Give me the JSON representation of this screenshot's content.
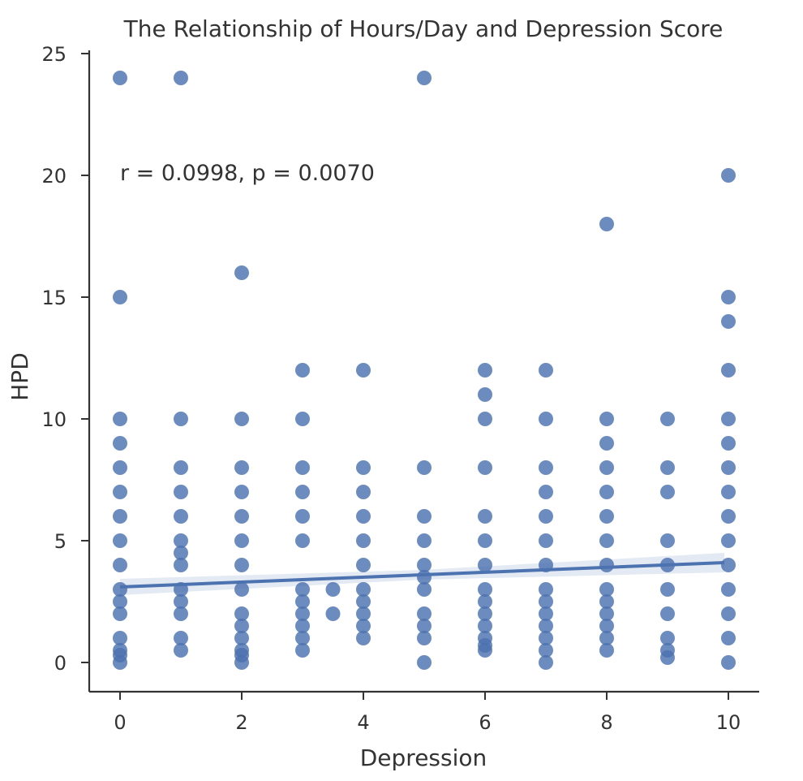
{
  "chart_data": {
    "type": "scatter",
    "title": "The Relationship of Hours/Day and Depression Score",
    "xlabel": "Depression",
    "ylabel": "HPD",
    "xlim": [
      -0.5,
      10.5
    ],
    "ylim": [
      -1.2,
      25.2
    ],
    "xticks": [
      0,
      2,
      4,
      6,
      8,
      10
    ],
    "yticks": [
      0,
      5,
      10,
      15,
      20,
      25
    ],
    "grid": false,
    "annotation": {
      "text": "r = 0.0998, p = 0.0070",
      "x": 0,
      "y": 20
    },
    "colors": {
      "points": "#4c72b0",
      "line": "#4c72b0",
      "band": "#4c72b0"
    },
    "regression": {
      "x": [
        0,
        10
      ],
      "y": [
        3.1,
        4.1
      ]
    },
    "points": [
      [
        0,
        24
      ],
      [
        0,
        15
      ],
      [
        0,
        10
      ],
      [
        0,
        9
      ],
      [
        0,
        8
      ],
      [
        0,
        7
      ],
      [
        0,
        6
      ],
      [
        0,
        5
      ],
      [
        0,
        4
      ],
      [
        0,
        3
      ],
      [
        0,
        2.5
      ],
      [
        0,
        2
      ],
      [
        0,
        1
      ],
      [
        0,
        0.5
      ],
      [
        0,
        0.3
      ],
      [
        0,
        0
      ],
      [
        1,
        24
      ],
      [
        1,
        10
      ],
      [
        1,
        8
      ],
      [
        1,
        7
      ],
      [
        1,
        6
      ],
      [
        1,
        5
      ],
      [
        1,
        4.5
      ],
      [
        1,
        4
      ],
      [
        1,
        3
      ],
      [
        1,
        2.5
      ],
      [
        1,
        2
      ],
      [
        1,
        1
      ],
      [
        1,
        0.5
      ],
      [
        2,
        16
      ],
      [
        2,
        10
      ],
      [
        2,
        8
      ],
      [
        2,
        7
      ],
      [
        2,
        6
      ],
      [
        2,
        5
      ],
      [
        2,
        4
      ],
      [
        2,
        3
      ],
      [
        2,
        2
      ],
      [
        2,
        1.5
      ],
      [
        2,
        1
      ],
      [
        2,
        0.5
      ],
      [
        2,
        0.3
      ],
      [
        2,
        0
      ],
      [
        3,
        12
      ],
      [
        3,
        10
      ],
      [
        3,
        8
      ],
      [
        3,
        7
      ],
      [
        3,
        6
      ],
      [
        3,
        5
      ],
      [
        3,
        3
      ],
      [
        3,
        2.5
      ],
      [
        3,
        2
      ],
      [
        3,
        1.5
      ],
      [
        3,
        1
      ],
      [
        3,
        0.5
      ],
      [
        3.5,
        3
      ],
      [
        3.5,
        2
      ],
      [
        4,
        12
      ],
      [
        4,
        8
      ],
      [
        4,
        7
      ],
      [
        4,
        6
      ],
      [
        4,
        5
      ],
      [
        4,
        4
      ],
      [
        4,
        3
      ],
      [
        4,
        2.5
      ],
      [
        4,
        2
      ],
      [
        4,
        1.5
      ],
      [
        4,
        1
      ],
      [
        5,
        24
      ],
      [
        5,
        8
      ],
      [
        5,
        6
      ],
      [
        5,
        5
      ],
      [
        5,
        4
      ],
      [
        5,
        3.5
      ],
      [
        5,
        3
      ],
      [
        5,
        2
      ],
      [
        5,
        1.5
      ],
      [
        5,
        1
      ],
      [
        5,
        0
      ],
      [
        6,
        12
      ],
      [
        6,
        11
      ],
      [
        6,
        10
      ],
      [
        6,
        8
      ],
      [
        6,
        6
      ],
      [
        6,
        5
      ],
      [
        6,
        4
      ],
      [
        6,
        3
      ],
      [
        6,
        2.5
      ],
      [
        6,
        2
      ],
      [
        6,
        1.5
      ],
      [
        6,
        1
      ],
      [
        6,
        0.7
      ],
      [
        6,
        0.5
      ],
      [
        7,
        12
      ],
      [
        7,
        10
      ],
      [
        7,
        8
      ],
      [
        7,
        7
      ],
      [
        7,
        6
      ],
      [
        7,
        5
      ],
      [
        7,
        4
      ],
      [
        7,
        3
      ],
      [
        7,
        2.5
      ],
      [
        7,
        2
      ],
      [
        7,
        1.5
      ],
      [
        7,
        1
      ],
      [
        7,
        0.5
      ],
      [
        7,
        0
      ],
      [
        8,
        18
      ],
      [
        8,
        10
      ],
      [
        8,
        9
      ],
      [
        8,
        8
      ],
      [
        8,
        7
      ],
      [
        8,
        6
      ],
      [
        8,
        5
      ],
      [
        8,
        4
      ],
      [
        8,
        3
      ],
      [
        8,
        2.5
      ],
      [
        8,
        2
      ],
      [
        8,
        1.5
      ],
      [
        8,
        1
      ],
      [
        8,
        0.5
      ],
      [
        9,
        10
      ],
      [
        9,
        8
      ],
      [
        9,
        7
      ],
      [
        9,
        5
      ],
      [
        9,
        4
      ],
      [
        9,
        3
      ],
      [
        9,
        2
      ],
      [
        9,
        1
      ],
      [
        9,
        0.5
      ],
      [
        9,
        0.2
      ],
      [
        10,
        20
      ],
      [
        10,
        15
      ],
      [
        10,
        14
      ],
      [
        10,
        12
      ],
      [
        10,
        10
      ],
      [
        10,
        9
      ],
      [
        10,
        8
      ],
      [
        10,
        7
      ],
      [
        10,
        6
      ],
      [
        10,
        5
      ],
      [
        10,
        4
      ],
      [
        10,
        3
      ],
      [
        10,
        2
      ],
      [
        10,
        1
      ],
      [
        10,
        0
      ]
    ]
  }
}
